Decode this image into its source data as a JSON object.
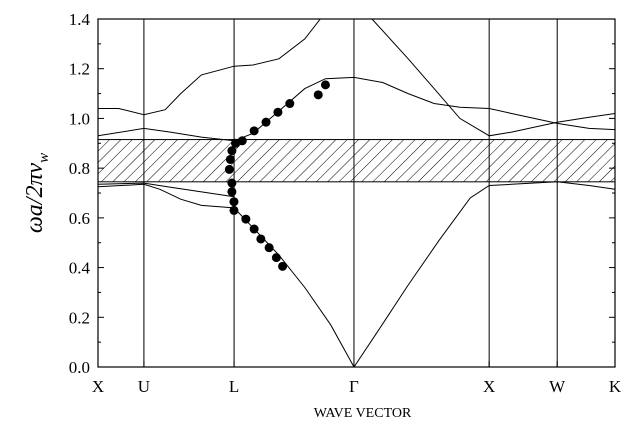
{
  "chart_data": {
    "type": "line",
    "title": "",
    "xlabel": "WAVE VECTOR",
    "ylabel": {
      "prefix": "ωa/2πv",
      "subscript": "w"
    },
    "ylim": [
      0.0,
      1.4
    ],
    "yticks": [
      "0.0",
      "0.2",
      "0.4",
      "0.6",
      "0.8",
      "1.0",
      "1.2",
      "1.4"
    ],
    "xlim": [
      0.0,
      1.0
    ],
    "symmetry_points": [
      {
        "label": "X",
        "x": 0.0
      },
      {
        "label": "U",
        "x": 0.0888
      },
      {
        "label": "L",
        "x": 0.2632
      },
      {
        "label": "Γ",
        "x": 0.4951
      },
      {
        "label": "X",
        "x": 0.7566
      },
      {
        "label": "W",
        "x": 0.8882
      },
      {
        "label": "K",
        "x": 1.0
      }
    ],
    "grid": false,
    "band_gap": {
      "ymin": 0.745,
      "ymax": 0.915,
      "fill": "hatched"
    },
    "series": [
      {
        "points": [
          [
            0.0,
            0.725
          ],
          [
            0.0888,
            0.735
          ],
          [
            0.12,
            0.715
          ],
          [
            0.16,
            0.675
          ],
          [
            0.2,
            0.65
          ],
          [
            0.2632,
            0.64
          ],
          [
            0.3,
            0.56
          ],
          [
            0.35,
            0.45
          ],
          [
            0.4,
            0.32
          ],
          [
            0.45,
            0.17
          ],
          [
            0.4951,
            0.0
          ],
          [
            0.54,
            0.14
          ],
          [
            0.6,
            0.33
          ],
          [
            0.66,
            0.51
          ],
          [
            0.72,
            0.68
          ],
          [
            0.7566,
            0.73
          ],
          [
            0.8,
            0.735
          ],
          [
            0.8882,
            0.745
          ],
          [
            0.95,
            0.73
          ],
          [
            1.0,
            0.715
          ]
        ]
      },
      {
        "points": [
          [
            0.0,
            0.735
          ],
          [
            0.0888,
            0.74
          ],
          [
            0.15,
            0.72
          ],
          [
            0.2632,
            0.685
          ]
        ]
      },
      {
        "points": [
          [
            0.0,
            0.93
          ],
          [
            0.0888,
            0.96
          ],
          [
            0.14,
            0.945
          ],
          [
            0.2,
            0.925
          ],
          [
            0.2632,
            0.91
          ],
          [
            0.3,
            0.94
          ],
          [
            0.35,
            1.03
          ],
          [
            0.4,
            1.12
          ],
          [
            0.44,
            1.16
          ],
          [
            0.4951,
            1.165
          ],
          [
            0.55,
            1.145
          ],
          [
            0.6,
            1.1
          ],
          [
            0.65,
            1.06
          ],
          [
            0.7,
            1.045
          ],
          [
            0.7566,
            1.04
          ],
          [
            0.8,
            1.02
          ],
          [
            0.8882,
            0.98
          ],
          [
            0.95,
            0.96
          ],
          [
            1.0,
            0.955
          ]
        ]
      },
      {
        "points": [
          [
            0.0,
            1.04
          ],
          [
            0.04,
            1.04
          ],
          [
            0.0888,
            1.015
          ],
          [
            0.13,
            1.035
          ],
          [
            0.16,
            1.1
          ],
          [
            0.2,
            1.175
          ],
          [
            0.2632,
            1.21
          ],
          [
            0.3,
            1.215
          ],
          [
            0.35,
            1.24
          ],
          [
            0.4,
            1.32
          ],
          [
            0.43,
            1.4
          ]
        ]
      },
      {
        "points": [
          [
            0.53,
            1.4
          ],
          [
            0.6,
            1.24
          ],
          [
            0.65,
            1.12
          ],
          [
            0.7,
            1.0
          ],
          [
            0.7566,
            0.93
          ],
          [
            0.8,
            0.945
          ],
          [
            0.8882,
            0.985
          ],
          [
            0.95,
            1.005
          ],
          [
            1.0,
            1.02
          ]
        ]
      }
    ],
    "markers": [
      {
        "x": 0.254,
        "y": 0.795
      },
      {
        "x": 0.256,
        "y": 0.835
      },
      {
        "x": 0.259,
        "y": 0.87
      },
      {
        "x": 0.266,
        "y": 0.9
      },
      {
        "x": 0.279,
        "y": 0.91
      },
      {
        "x": 0.302,
        "y": 0.95
      },
      {
        "x": 0.325,
        "y": 0.985
      },
      {
        "x": 0.348,
        "y": 1.025
      },
      {
        "x": 0.371,
        "y": 1.06
      },
      {
        "x": 0.426,
        "y": 1.095
      },
      {
        "x": 0.44,
        "y": 1.135
      },
      {
        "x": 0.259,
        "y": 0.74
      },
      {
        "x": 0.259,
        "y": 0.705
      },
      {
        "x": 0.263,
        "y": 0.665
      },
      {
        "x": 0.263,
        "y": 0.63
      },
      {
        "x": 0.286,
        "y": 0.595
      },
      {
        "x": 0.302,
        "y": 0.555
      },
      {
        "x": 0.315,
        "y": 0.515
      },
      {
        "x": 0.331,
        "y": 0.48
      },
      {
        "x": 0.345,
        "y": 0.44
      },
      {
        "x": 0.357,
        "y": 0.405
      }
    ]
  }
}
